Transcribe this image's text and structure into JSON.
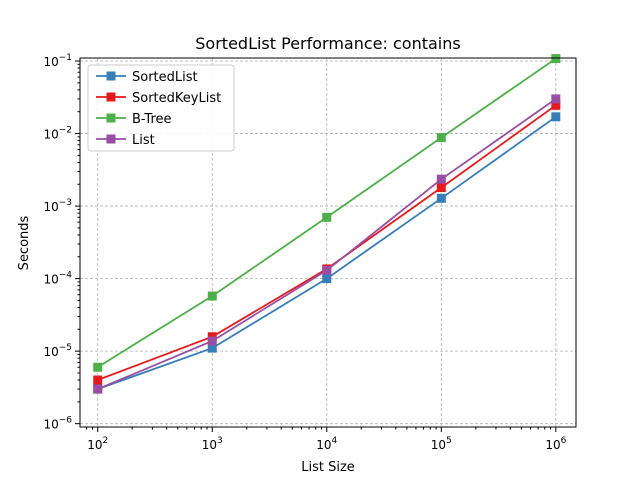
{
  "chart_data": {
    "type": "line",
    "title": "SortedList Performance: contains",
    "xlabel": "List Size",
    "ylabel": "Seconds",
    "xscale": "log",
    "yscale": "log",
    "xlim": [
      70,
      1500000
    ],
    "ylim": [
      9e-07,
      0.11
    ],
    "grid": true,
    "legend_position": "top-left",
    "x": [
      100,
      1000,
      10000,
      100000,
      1000000
    ],
    "x_ticks": [
      {
        "value": 100,
        "base": "10",
        "exp": "2"
      },
      {
        "value": 1000,
        "base": "10",
        "exp": "3"
      },
      {
        "value": 10000,
        "base": "10",
        "exp": "4"
      },
      {
        "value": 100000,
        "base": "10",
        "exp": "5"
      },
      {
        "value": 1000000,
        "base": "10",
        "exp": "6"
      }
    ],
    "y_ticks": [
      {
        "value": 1e-06,
        "base": "10",
        "exp": "−6"
      },
      {
        "value": 1e-05,
        "base": "10",
        "exp": "−5"
      },
      {
        "value": 0.0001,
        "base": "10",
        "exp": "−4"
      },
      {
        "value": 0.001,
        "base": "10",
        "exp": "−3"
      },
      {
        "value": 0.01,
        "base": "10",
        "exp": "−2"
      },
      {
        "value": 0.1,
        "base": "10",
        "exp": "−1"
      }
    ],
    "series": [
      {
        "name": "SortedList",
        "color": "#377eb8",
        "values": [
          3e-06,
          1.1e-05,
          0.0001,
          0.00128,
          0.017
        ]
      },
      {
        "name": "SortedKeyList",
        "color": "#e41a1c",
        "values": [
          4e-06,
          1.58e-05,
          0.000136,
          0.0018,
          0.0245
        ]
      },
      {
        "name": "B-Tree",
        "color": "#4daf4a",
        "values": [
          6e-06,
          5.75e-05,
          0.0007,
          0.0088,
          0.108
        ]
      },
      {
        "name": "List",
        "color": "#984ea3",
        "values": [
          3e-06,
          1.38e-05,
          0.00013,
          0.00235,
          0.03
        ]
      }
    ]
  }
}
